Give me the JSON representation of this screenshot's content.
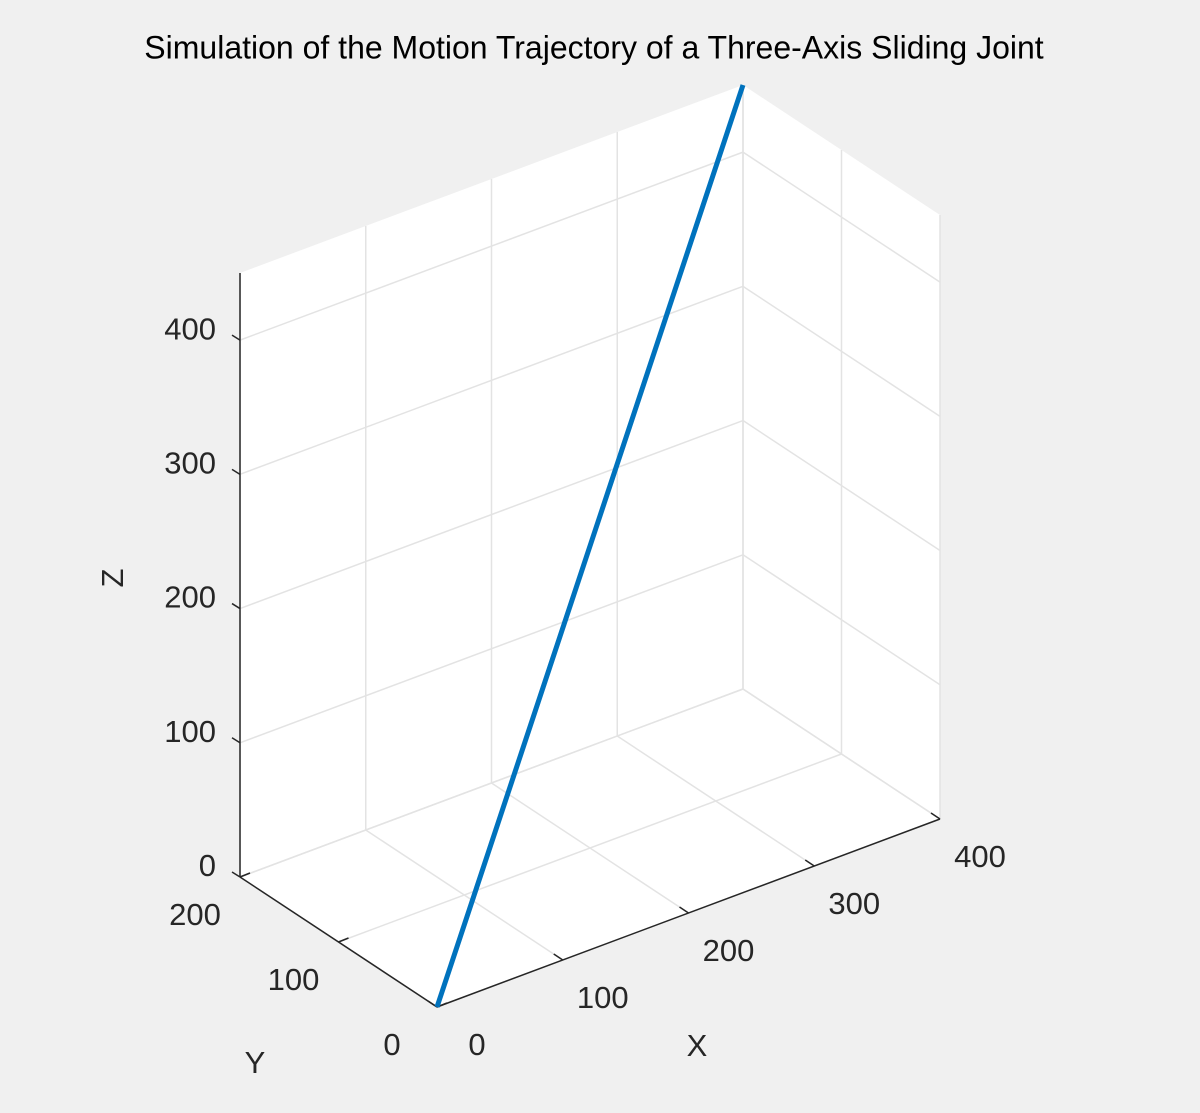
{
  "chart_data": {
    "type": "line3d",
    "title": "Simulation of the Motion Trajectory of a Three-Axis Sliding Joint",
    "x_label": "X",
    "y_label": "Y",
    "z_label": "Z",
    "x": [
      0,
      400
    ],
    "y": [
      0,
      200
    ],
    "z": [
      0,
      450
    ],
    "color": "#0072bd",
    "xlim": [
      0,
      400
    ],
    "ylim": [
      0,
      200
    ],
    "zlim": [
      0,
      450
    ],
    "xticks": [
      0,
      100,
      200,
      300,
      400
    ],
    "yticks": [
      0,
      100,
      200
    ],
    "zticks": [
      0,
      100,
      200,
      300,
      400
    ],
    "grid": true
  }
}
